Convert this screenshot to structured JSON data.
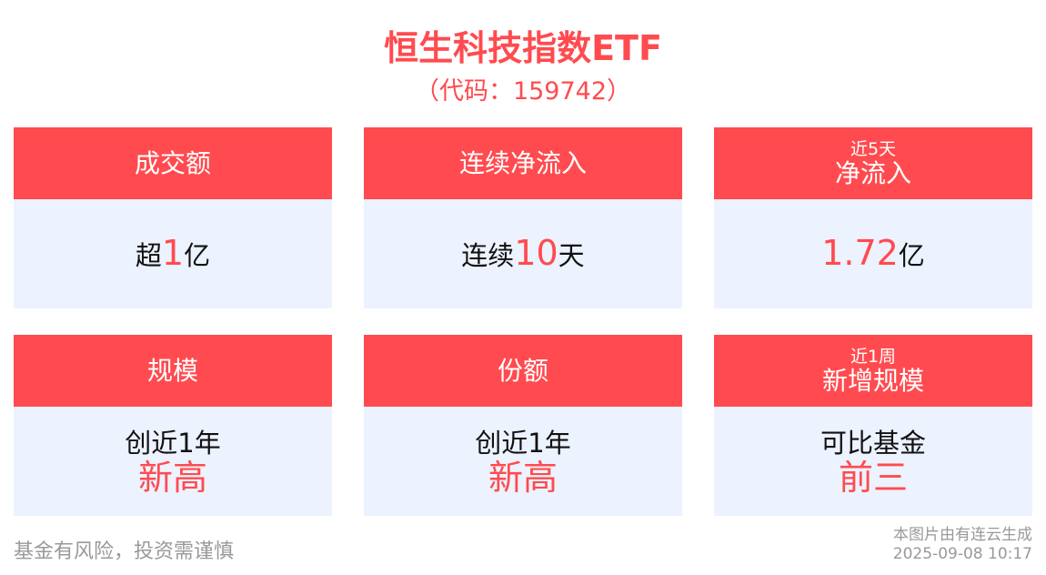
{
  "header": {
    "title": "恒生科技指数ETF",
    "code": "（代码：159742）"
  },
  "cards": [
    {
      "label": "成交额",
      "sub": "",
      "prefix": "超",
      "value": "1",
      "suffix": "亿"
    },
    {
      "label": "连续净流入",
      "sub": "",
      "prefix": "连续",
      "value": "10",
      "suffix": "天"
    },
    {
      "label": "净流入",
      "sub": "近5天",
      "prefix": "",
      "value": "1.72",
      "suffix": "亿"
    },
    {
      "label": "规模",
      "sub": "",
      "text": "创近1年",
      "highlight": "新高"
    },
    {
      "label": "份额",
      "sub": "",
      "text": "创近1年",
      "highlight": "新高"
    },
    {
      "label": "新增规模",
      "sub": "近1周",
      "text": "可比基金",
      "highlight": "前三"
    }
  ],
  "footer": {
    "disclaimer": "基金有风险，投资需谨慎",
    "source": "本图片由有连云生成",
    "timestamp": "2025-09-08 10:17"
  },
  "colors": {
    "accent": "#FF4B4F",
    "card_body": "#ECF2FE"
  }
}
